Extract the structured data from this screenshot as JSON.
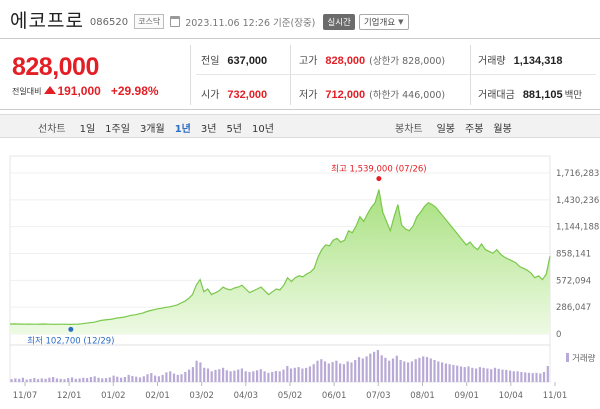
{
  "header": {
    "name": "에코프로",
    "code": "086520",
    "market": "코스닥",
    "datetime": "2023.11.06 12:26 기준(장중)",
    "realtime": "실시간",
    "overview": "기업개요"
  },
  "summary": {
    "price": "828,000",
    "change_label": "전일대비",
    "change_abs": "191,000",
    "change_pct": "+29.98%",
    "prev_close_label": "전일",
    "prev_close": "637,000",
    "open_label": "시가",
    "open": "732,000",
    "high_label": "고가",
    "high": "828,000",
    "upper_limit": "(상한가 828,000)",
    "low_label": "저가",
    "low": "712,000",
    "lower_limit": "(하한가 446,000)",
    "volume_label": "거래량",
    "volume": "1,134,318",
    "amount_label": "거래대금",
    "amount": "881,105",
    "amount_unit": "백만"
  },
  "tabs": {
    "line_label": "선차트",
    "periods": [
      "1일",
      "1주일",
      "3개월",
      "1년",
      "3년",
      "5년",
      "10년"
    ],
    "active_period": "1년",
    "candle_label": "봉차트",
    "candle_periods": [
      "일봉",
      "주봉",
      "월봉"
    ]
  },
  "colors": {
    "up": "#e31e24",
    "down": "#2b6cc4",
    "area_top": "#a7e07e",
    "area_bottom": "#eefae4",
    "line": "#79c84a",
    "volume": "#b9a9d6"
  },
  "chart_data": {
    "type": "area",
    "y_ticks": [
      "1,716,283",
      "1,430,236",
      "1,144,188",
      "858,141",
      "572,094",
      "286,047",
      "0"
    ],
    "y_max": 1716283,
    "x_labels": [
      "11/07",
      "12/01",
      "01/02",
      "02/01",
      "03/02",
      "04/03",
      "05/02",
      "06/01",
      "07/03",
      "08/01",
      "09/01",
      "10/04",
      "11/01"
    ],
    "high_annotation": "최고 1,539,000 (07/26)",
    "low_annotation": "최저 102,700 (12/29)",
    "high_value": 1539000,
    "low_value": 102700,
    "volume_legend": "거래량",
    "series": [
      {
        "values": [
          105000,
          108000,
          107000,
          106000,
          105000,
          106000,
          105000,
          104000,
          106000,
          107000,
          105000,
          104000,
          103000,
          105000,
          104000,
          103000,
          102700,
          104000,
          106000,
          110000,
          115000,
          120000,
          125000,
          135000,
          145000,
          150000,
          155000,
          160000,
          170000,
          175000,
          180000,
          190000,
          200000,
          205000,
          215000,
          225000,
          240000,
          250000,
          260000,
          270000,
          275000,
          285000,
          290000,
          300000,
          310000,
          330000,
          350000,
          380000,
          420000,
          520000,
          580000,
          450000,
          480000,
          420000,
          440000,
          460000,
          500000,
          480000,
          470000,
          490000,
          500000,
          520000,
          480000,
          440000,
          460000,
          480000,
          500000,
          460000,
          420000,
          450000,
          480000,
          470000,
          520000,
          600000,
          560000,
          600000,
          620000,
          610000,
          640000,
          660000,
          700000,
          820000,
          900000,
          950000,
          940000,
          1000000,
          1020000,
          980000,
          1000000,
          1100000,
          1080000,
          1150000,
          1250000,
          1200000,
          1280000,
          1350000,
          1400000,
          1539000,
          1300000,
          1200000,
          1100000,
          1250000,
          1380000,
          1160000,
          1120000,
          1100000,
          1150000,
          1250000,
          1300000,
          1360000,
          1400000,
          1380000,
          1350000,
          1300000,
          1250000,
          1200000,
          1150000,
          1100000,
          1050000,
          1000000,
          950000,
          980000,
          930000,
          900000,
          960000,
          900000,
          880000,
          860000,
          900000,
          850000,
          820000,
          800000,
          780000,
          760000,
          720000,
          700000,
          680000,
          650000,
          600000,
          620000,
          580000,
          637000,
          828000
        ]
      }
    ],
    "volume": [
      8,
      10,
      9,
      12,
      7,
      9,
      11,
      8,
      10,
      9,
      12,
      14,
      10,
      9,
      8,
      11,
      13,
      9,
      10,
      12,
      11,
      14,
      16,
      12,
      10,
      11,
      13,
      18,
      15,
      12,
      14,
      20,
      17,
      15,
      13,
      16,
      22,
      25,
      18,
      16,
      20,
      27,
      30,
      24,
      20,
      22,
      28,
      35,
      42,
      60,
      55,
      40,
      38,
      30,
      34,
      36,
      40,
      33,
      30,
      32,
      35,
      38,
      30,
      28,
      30,
      33,
      36,
      30,
      26,
      28,
      31,
      30,
      35,
      45,
      38,
      40,
      42,
      38,
      40,
      44,
      50,
      60,
      64,
      58,
      52,
      56,
      60,
      52,
      50,
      58,
      55,
      62,
      70,
      66,
      72,
      80,
      85,
      90,
      75,
      68,
      60,
      66,
      74,
      62,
      58,
      55,
      58,
      64,
      68,
      72,
      70,
      66,
      62,
      58,
      55,
      52,
      50,
      48,
      46,
      44,
      42,
      44,
      40,
      38,
      42,
      40,
      38,
      36,
      40,
      37,
      35,
      34,
      32,
      30,
      30,
      28,
      27,
      26,
      25,
      26,
      24,
      28,
      45
    ]
  }
}
